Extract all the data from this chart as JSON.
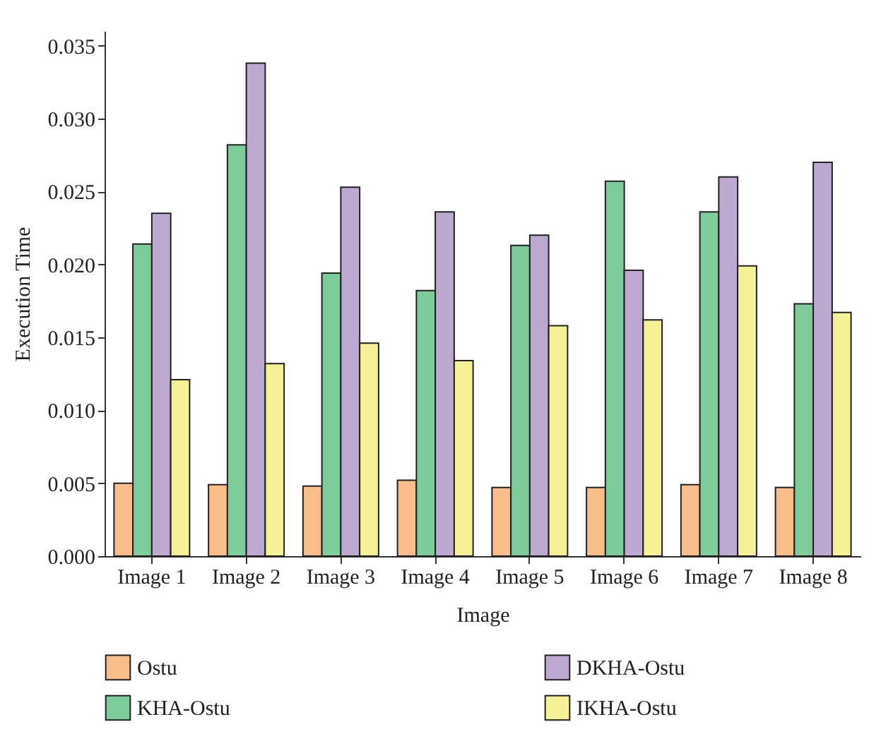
{
  "chart_data": {
    "type": "bar",
    "xlabel": "Image",
    "ylabel": "Execution Time",
    "categories": [
      "Image 1",
      "Image 2",
      "Image 3",
      "Image 4",
      "Image 5",
      "Image 6",
      "Image 7",
      "Image 8"
    ],
    "series": [
      {
        "name": "Ostu",
        "color": "#f9bc8b",
        "values": [
          0.005,
          0.0049,
          0.0048,
          0.0052,
          0.0047,
          0.0047,
          0.0049,
          0.0047
        ]
      },
      {
        "name": "KHA-Ostu",
        "color": "#7ccb98",
        "values": [
          0.0214,
          0.0282,
          0.0194,
          0.0182,
          0.0213,
          0.0257,
          0.0236,
          0.0173
        ]
      },
      {
        "name": "DKHA-Ostu",
        "color": "#bca8d1",
        "values": [
          0.0235,
          0.0338,
          0.0253,
          0.0236,
          0.022,
          0.0196,
          0.026,
          0.027
        ]
      },
      {
        "name": "IKHA-Ostu",
        "color": "#f5f197",
        "values": [
          0.0121,
          0.0132,
          0.0146,
          0.0134,
          0.0158,
          0.0162,
          0.0199,
          0.0167
        ]
      }
    ],
    "ylim": [
      0,
      0.036
    ],
    "yticks": [
      {
        "value": 0,
        "label": "0.000"
      },
      {
        "value": 0.005,
        "label": "0.005"
      },
      {
        "value": 0.01,
        "label": "0.010"
      },
      {
        "value": 0.015,
        "label": "0.015"
      },
      {
        "value": 0.02,
        "label": "0.020"
      },
      {
        "value": 0.025,
        "label": "0.025"
      },
      {
        "value": 0.03,
        "label": "0.030"
      },
      {
        "value": 0.035,
        "label": "0.035"
      }
    ],
    "grid": false,
    "legend": "bottom"
  }
}
